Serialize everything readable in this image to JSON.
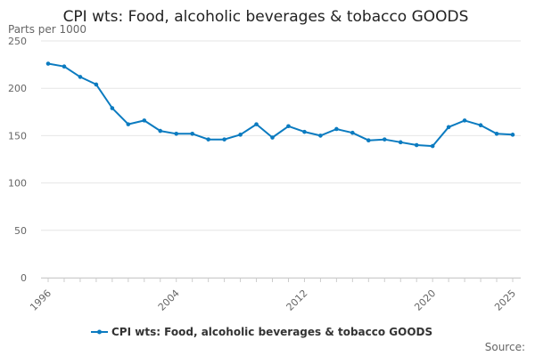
{
  "chart_data": {
    "type": "line",
    "title": "CPI wts: Food, alcoholic beverages & tobacco GOODS",
    "ylabel": "Parts per 1000",
    "xlabel": "",
    "ylim": [
      0,
      250
    ],
    "xlim": [
      1996,
      2025
    ],
    "yticks": [
      "0",
      "50",
      "100",
      "150",
      "200",
      "250"
    ],
    "xticks": [
      "1996",
      "2004",
      "2012",
      "2020",
      "2025"
    ],
    "grid": "horizontal",
    "legend_position": "bottom",
    "color": "#0b7bc0",
    "series": [
      {
        "name": "CPI wts: Food, alcoholic beverages & tobacco GOODS",
        "x": [
          1996,
          1997,
          1998,
          1999,
          2000,
          2001,
          2002,
          2003,
          2004,
          2005,
          2006,
          2007,
          2008,
          2009,
          2010,
          2011,
          2012,
          2013,
          2014,
          2015,
          2016,
          2017,
          2018,
          2019,
          2020,
          2021,
          2022,
          2023,
          2024,
          2025
        ],
        "values": [
          226,
          223,
          212,
          204,
          179,
          162,
          166,
          155,
          152,
          152,
          146,
          146,
          151,
          162,
          148,
          160,
          154,
          150,
          157,
          153,
          145,
          146,
          143,
          140,
          139,
          159,
          166,
          161,
          152,
          151
        ]
      }
    ]
  },
  "footer": {
    "source_label": "Source:"
  }
}
